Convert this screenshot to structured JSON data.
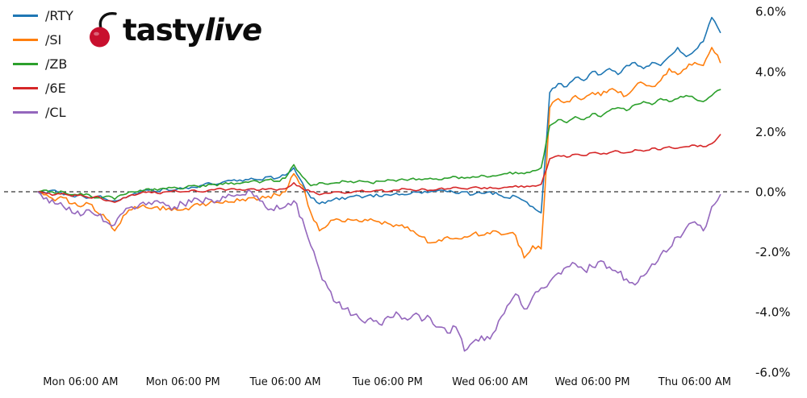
{
  "logo": {
    "brand_part1": "tasty",
    "brand_part2": "live",
    "cherry_color": "#c8102e",
    "text_color": "#0c0c0c"
  },
  "legend": [
    {
      "label": "/RTY",
      "color": "#1f77b4"
    },
    {
      "label": "/SI",
      "color": "#ff7f0e"
    },
    {
      "label": "/ZB",
      "color": "#2ca02c"
    },
    {
      "label": "/6E",
      "color": "#d62728"
    },
    {
      "label": "/CL",
      "color": "#9467bd"
    }
  ],
  "chart_data": {
    "type": "line",
    "title": "",
    "xlabel": "",
    "ylabel": "",
    "legend_position": "upper left",
    "grid": false,
    "zero_line": {
      "value": 0,
      "style": "dashed",
      "color": "#000000"
    },
    "x_unit": "hours since Mon 01:00 AM, 1-hour step per value",
    "xlim": [
      0,
      80
    ],
    "ylim": [
      -6.2,
      6.2
    ],
    "x_tick_positions": [
      5,
      17,
      29,
      41,
      53,
      65,
      77
    ],
    "x_tick_labels": [
      "Mon 06:00 AM",
      "Mon 06:00 PM",
      "Tue 06:00 AM",
      "Tue 06:00 PM",
      "Wed 06:00 AM",
      "Wed 06:00 PM",
      "Thu 06:00 AM"
    ],
    "y_tick_values": [
      6,
      4,
      2,
      0,
      -2,
      -4,
      -6
    ],
    "y_tick_labels": [
      "6.0%",
      "4.0%",
      "2.0%",
      "0.0%",
      "-2.0%",
      "-4.0%",
      "-6.0%"
    ],
    "series": [
      {
        "name": "/RTY",
        "color": "#1f77b4",
        "values": [
          0,
          -0.05,
          0.05,
          -0.1,
          -0.15,
          -0.1,
          -0.2,
          -0.15,
          -0.25,
          -0.3,
          -0.2,
          -0.1,
          0,
          0.05,
          0,
          0.1,
          0.05,
          0.1,
          0.15,
          0.2,
          0.3,
          0.25,
          0.35,
          0.4,
          0.35,
          0.45,
          0.4,
          0.5,
          0.45,
          0.55,
          0.8,
          0.3,
          -0.2,
          -0.4,
          -0.3,
          -0.2,
          -0.25,
          -0.15,
          -0.2,
          -0.1,
          -0.15,
          -0.1,
          -0.05,
          -0.1,
          0,
          -0.05,
          0,
          0.05,
          0,
          -0.05,
          0,
          -0.1,
          -0.05,
          0,
          -0.1,
          -0.2,
          -0.15,
          -0.3,
          -0.5,
          -0.7,
          3.3,
          3.6,
          3.5,
          3.8,
          3.7,
          4,
          3.9,
          4.1,
          3.9,
          4.2,
          4.3,
          4.1,
          4.3,
          4.2,
          4.5,
          4.8,
          4.5,
          4.7,
          5,
          5.8,
          5.3
        ]
      },
      {
        "name": "/SI",
        "color": "#ff7f0e",
        "values": [
          0,
          -0.1,
          -0.3,
          -0.2,
          -0.4,
          -0.5,
          -0.4,
          -0.7,
          -0.9,
          -1.3,
          -0.8,
          -0.6,
          -0.5,
          -0.55,
          -0.5,
          -0.6,
          -0.55,
          -0.6,
          -0.5,
          -0.45,
          -0.4,
          -0.35,
          -0.3,
          -0.35,
          -0.25,
          -0.2,
          -0.25,
          -0.15,
          -0.1,
          0,
          0.6,
          0.2,
          -0.7,
          -1.3,
          -1.1,
          -0.9,
          -1,
          -0.95,
          -1,
          -0.9,
          -1,
          -1.05,
          -1.1,
          -1.2,
          -1.3,
          -1.5,
          -1.7,
          -1.6,
          -1.5,
          -1.55,
          -1.5,
          -1.4,
          -1.45,
          -1.4,
          -1.35,
          -1.4,
          -1.45,
          -2.2,
          -1.8,
          -1.9,
          2.8,
          3.1,
          3,
          3.2,
          3.1,
          3.3,
          3.2,
          3.4,
          3.3,
          3.2,
          3.5,
          3.6,
          3.5,
          3.7,
          4.1,
          3.9,
          4.1,
          4.3,
          4.2,
          4.8,
          4.3
        ]
      },
      {
        "name": "/ZB",
        "color": "#2ca02c",
        "values": [
          0,
          0.05,
          -0.05,
          0,
          -0.1,
          -0.05,
          -0.1,
          -0.2,
          -0.15,
          -0.25,
          -0.1,
          0,
          0.05,
          0.1,
          0.05,
          0.1,
          0.15,
          0.1,
          0.2,
          0.15,
          0.25,
          0.2,
          0.3,
          0.25,
          0.3,
          0.35,
          0.3,
          0.4,
          0.35,
          0.45,
          0.9,
          0.5,
          0.2,
          0.3,
          0.25,
          0.3,
          0.35,
          0.3,
          0.35,
          0.3,
          0.35,
          0.4,
          0.35,
          0.4,
          0.45,
          0.4,
          0.45,
          0.4,
          0.45,
          0.5,
          0.45,
          0.5,
          0.55,
          0.5,
          0.55,
          0.6,
          0.65,
          0.6,
          0.7,
          0.8,
          2.2,
          2.4,
          2.3,
          2.5,
          2.4,
          2.6,
          2.5,
          2.7,
          2.8,
          2.7,
          2.9,
          3,
          2.9,
          3.1,
          3,
          3.1,
          3.2,
          3.1,
          3,
          3.2,
          3.4
        ]
      },
      {
        "name": "/6E",
        "color": "#d62728",
        "values": [
          0,
          -0.05,
          -0.1,
          -0.05,
          -0.15,
          -0.1,
          -0.2,
          -0.15,
          -0.3,
          -0.35,
          -0.2,
          -0.1,
          -0.05,
          0,
          -0.05,
          0,
          0.05,
          0,
          0.05,
          0,
          0.05,
          0.1,
          0.05,
          0.1,
          0.05,
          0.1,
          0.05,
          0.1,
          0.05,
          0.1,
          0.3,
          0.1,
          0,
          -0.1,
          -0.05,
          0,
          -0.05,
          0,
          0.05,
          0,
          0.05,
          0,
          0.05,
          0.1,
          0.05,
          0.1,
          0.05,
          0.1,
          0.1,
          0.15,
          0.1,
          0.15,
          0.1,
          0.15,
          0.1,
          0.15,
          0.2,
          0.15,
          0.2,
          0.25,
          1.1,
          1.2,
          1.15,
          1.25,
          1.2,
          1.3,
          1.25,
          1.3,
          1.35,
          1.3,
          1.4,
          1.35,
          1.45,
          1.4,
          1.5,
          1.45,
          1.5,
          1.55,
          1.5,
          1.6,
          1.9
        ]
      },
      {
        "name": "/CL",
        "color": "#9467bd",
        "values": [
          0,
          -0.2,
          -0.4,
          -0.5,
          -0.7,
          -0.8,
          -0.6,
          -0.8,
          -1,
          -1.1,
          -0.7,
          -0.5,
          -0.4,
          -0.35,
          -0.3,
          -0.45,
          -0.5,
          -0.4,
          -0.35,
          -0.3,
          -0.25,
          -0.3,
          -0.2,
          -0.15,
          -0.1,
          0,
          -0.3,
          -0.6,
          -0.45,
          -0.5,
          -0.3,
          -0.9,
          -1.8,
          -2.6,
          -3.2,
          -3.7,
          -3.9,
          -4.1,
          -4.3,
          -4.2,
          -4.4,
          -4.15,
          -4,
          -4.2,
          -4.1,
          -4.3,
          -4.2,
          -4.5,
          -4.7,
          -4.5,
          -5.3,
          -5,
          -4.8,
          -4.9,
          -4.3,
          -3.8,
          -3.4,
          -3.9,
          -3.5,
          -3.2,
          -3,
          -2.7,
          -2.5,
          -2.4,
          -2.6,
          -2.5,
          -2.3,
          -2.5,
          -2.7,
          -2.9,
          -3.1,
          -2.8,
          -2.4,
          -2.1,
          -1.9,
          -1.5,
          -1.2,
          -1,
          -1.3,
          -0.5,
          -0.1
        ]
      }
    ]
  }
}
